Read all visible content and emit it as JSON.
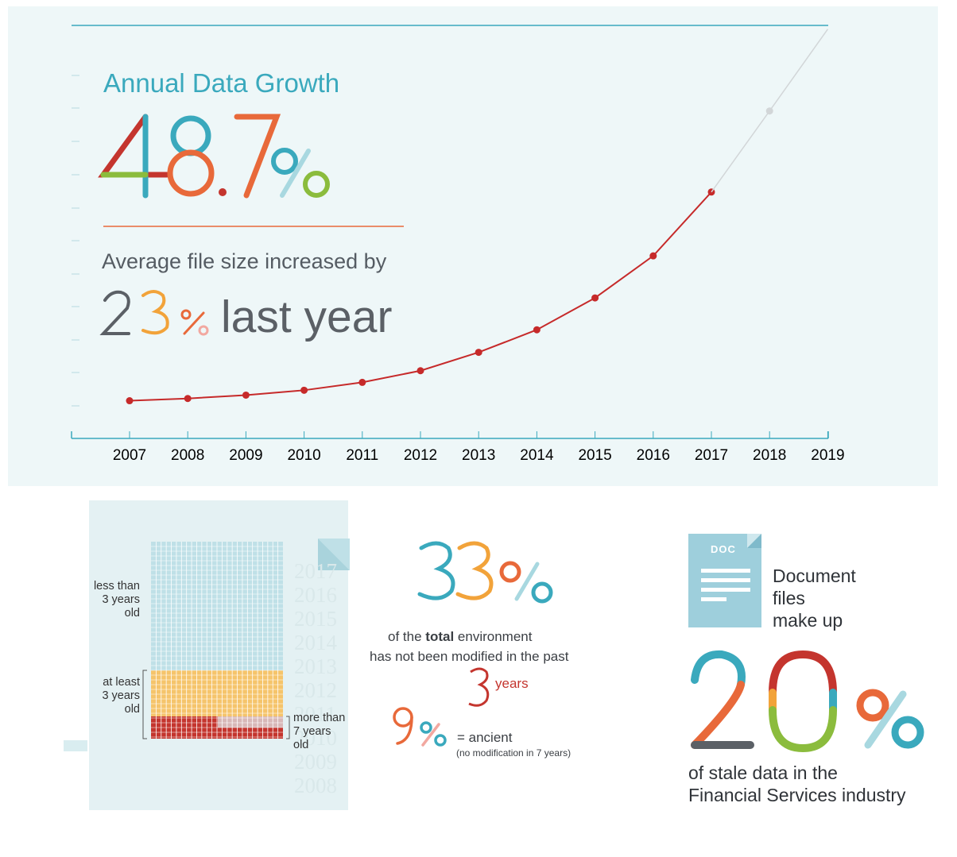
{
  "top": {
    "title": "Annual Data Growth",
    "growth_pct": "48.7%",
    "avg_line1": "Average file size increased by",
    "avg_num": "23",
    "avg_pct": "%",
    "avg_rest": "last year"
  },
  "chart_data": {
    "type": "line",
    "categories": [
      "2007",
      "2008",
      "2009",
      "2010",
      "2011",
      "2012",
      "2013",
      "2014",
      "2015",
      "2016",
      "2017",
      "2018",
      "2019"
    ],
    "series": [
      {
        "values": [
          1.0,
          1.3,
          1.75,
          2.4,
          3.45,
          5.0,
          7.45,
          10.45,
          14.7,
          20.3,
          28.8,
          null,
          null
        ],
        "color": "#c62a2a"
      },
      {
        "values": [
          null,
          null,
          null,
          null,
          null,
          null,
          null,
          null,
          null,
          null,
          28.8,
          39.6,
          50.5
        ],
        "color": "#d2d6d8"
      }
    ],
    "ylim": [
      0,
      51
    ],
    "grid": false
  },
  "doc": {
    "years": [
      "2017",
      "2016",
      "2015",
      "2014",
      "2013",
      "2012",
      "2011",
      "2010",
      "2009",
      "2008"
    ],
    "lt3": [
      "less than",
      "3 years",
      "old"
    ],
    "atleast3": [
      "at least",
      "3 years",
      "old"
    ],
    "gt7": [
      "more than",
      "7 years",
      "old"
    ],
    "big_pct": "33%",
    "of_the": "of the",
    "total": "total",
    "environment": "environment",
    "not_modified": "has not been modified in the past",
    "three": "3",
    "years_word": "years",
    "nine_pct": "9%",
    "ancient": "= ancient",
    "no_mod": "(no modification in 7 years)"
  },
  "right": {
    "doc_label": "DOC",
    "lines": [
      "Document",
      "files",
      "make up"
    ],
    "big": "20%",
    "bottom": [
      "of stale data in the",
      "Financial Services industry"
    ]
  }
}
